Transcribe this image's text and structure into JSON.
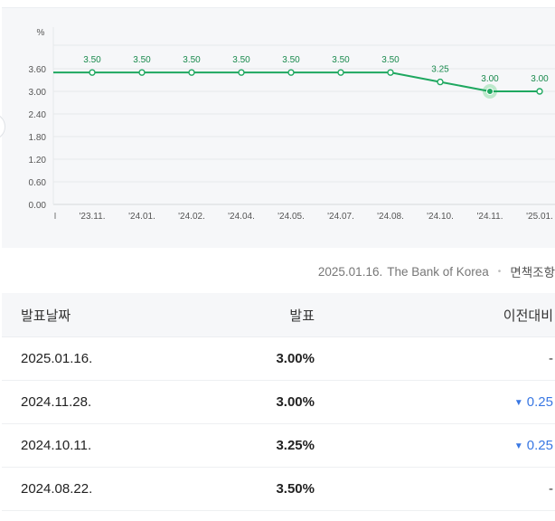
{
  "chart_data": {
    "type": "line",
    "unit_label": "%",
    "categories": [
      "'23.11.",
      "'24.01.",
      "'24.02.",
      "'24.04.",
      "'24.05.",
      "'24.07.",
      "'24.08.",
      "'24.10.",
      "'24.11.",
      "'25.01."
    ],
    "values": [
      3.5,
      3.5,
      3.5,
      3.5,
      3.5,
      3.5,
      3.5,
      3.25,
      3.0,
      3.0
    ],
    "value_labels": [
      "3.50",
      "3.50",
      "3.50",
      "3.50",
      "3.50",
      "3.50",
      "3.50",
      "3.25",
      "3.00",
      "3.00"
    ],
    "yticks": [
      "0.00",
      "0.60",
      "1.20",
      "1.80",
      "2.40",
      "3.00",
      "3.60"
    ],
    "ylim": [
      0,
      4.2
    ],
    "highlight_index": 8,
    "line_color": "#1fa860",
    "grid": true
  },
  "source": {
    "date": "2025.01.16.",
    "publisher": "The Bank of Korea",
    "separator": "•",
    "disclaimer": "면책조항"
  },
  "table": {
    "headers": {
      "date": "발표날짜",
      "rate": "발표",
      "change": "이전대비"
    },
    "rows": [
      {
        "date": "2025.01.16.",
        "rate": "3.00%",
        "change": "-",
        "direction": "none"
      },
      {
        "date": "2024.11.28.",
        "rate": "3.00%",
        "change": "0.25",
        "direction": "down"
      },
      {
        "date": "2024.10.11.",
        "rate": "3.25%",
        "change": "0.25",
        "direction": "down"
      },
      {
        "date": "2024.08.22.",
        "rate": "3.50%",
        "change": "-",
        "direction": "none"
      }
    ],
    "down_color": "#3a78e3",
    "down_symbol": "▼"
  }
}
